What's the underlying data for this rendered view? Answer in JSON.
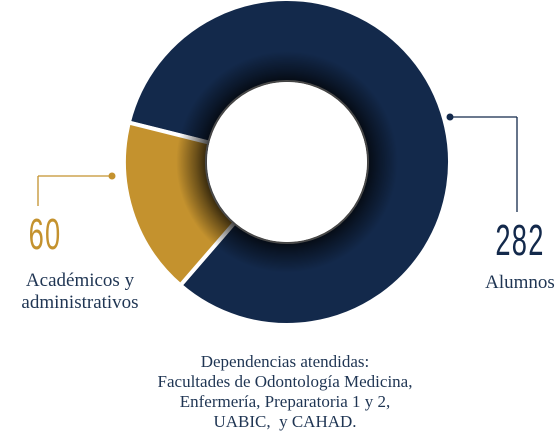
{
  "chart_data": {
    "type": "donut",
    "categories": [
      "Alumnos",
      "Académicos y administrativos"
    ],
    "values": [
      282,
      60
    ],
    "colors": [
      "#13294b",
      "#c4922e"
    ],
    "caption": [
      "Dependencias atendidas:",
      "Facultades de Odontología Medicina,",
      "Enfermería, Preparatoria 1 y 2,",
      "UABIC,  y CAHAD."
    ]
  }
}
